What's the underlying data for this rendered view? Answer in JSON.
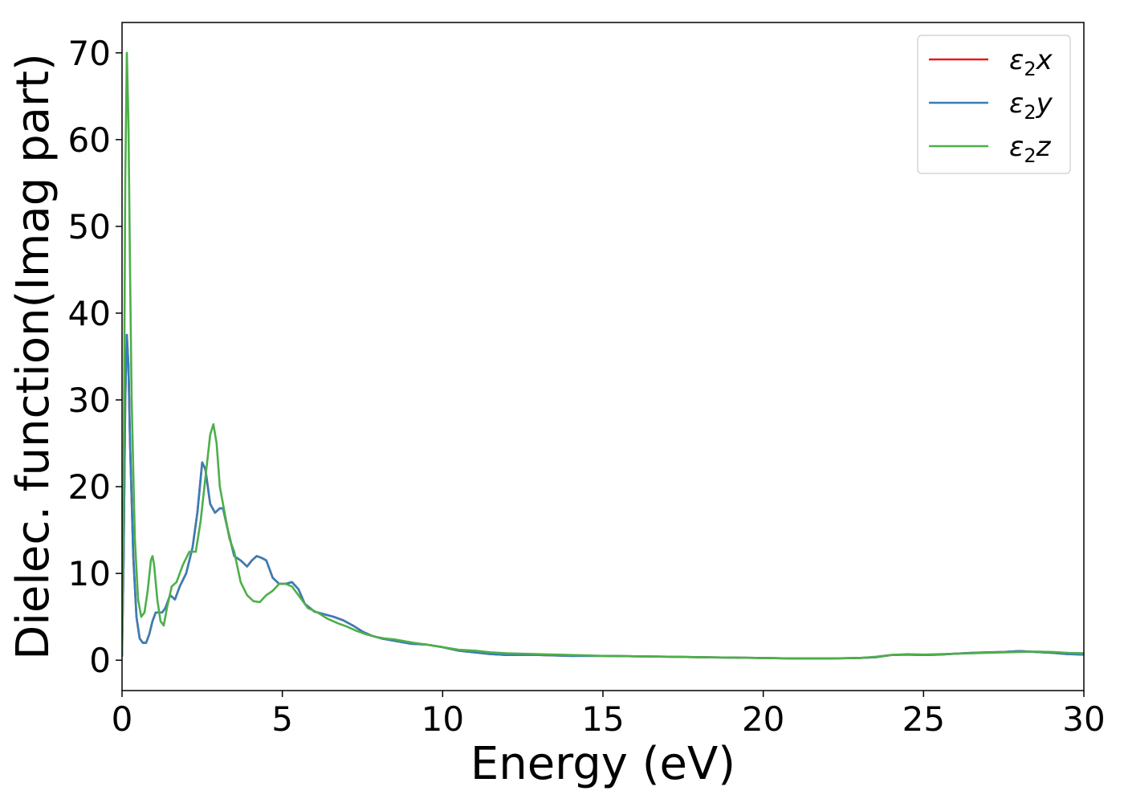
{
  "chart_data": {
    "type": "line",
    "title": "",
    "xlabel": "Energy (eV)",
    "ylabel": "Dielec. function(Imag part)",
    "xlim": [
      0,
      30
    ],
    "ylim": [
      -3.5,
      73.5
    ],
    "xticks": [
      0,
      5,
      10,
      15,
      20,
      25,
      30
    ],
    "xtick_labels": [
      "0",
      "5",
      "10",
      "15",
      "20",
      "25",
      "30"
    ],
    "yticks": [
      0,
      10,
      20,
      30,
      40,
      50,
      60,
      70
    ],
    "ytick_labels": [
      "0",
      "10",
      "20",
      "30",
      "40",
      "50",
      "60",
      "70"
    ],
    "grid": false,
    "legend_position": "top-right",
    "series": [
      {
        "name": "ε2x",
        "legend_base": "ε",
        "legend_sub": "2",
        "legend_suffix": "x",
        "color": "#e41a1c",
        "x": [
          0,
          0.05,
          0.1,
          0.15,
          0.2,
          0.25,
          0.35,
          0.45,
          0.55,
          0.65,
          0.75,
          0.85,
          0.95,
          1.05,
          1.15,
          1.25,
          1.35,
          1.5,
          1.65,
          1.8,
          2.0,
          2.2,
          2.35,
          2.5,
          2.6,
          2.75,
          2.9,
          3.05,
          3.15,
          3.3,
          3.5,
          3.7,
          3.9,
          4.05,
          4.2,
          4.35,
          4.5,
          4.7,
          4.9,
          5.1,
          5.3,
          5.5,
          5.7,
          6.0,
          6.3,
          6.6,
          6.9,
          7.2,
          7.5,
          7.8,
          8.1,
          8.4,
          8.7,
          9.0,
          9.5,
          10,
          10.5,
          11,
          11.5,
          12,
          13,
          14,
          15,
          16,
          17,
          18,
          19,
          20,
          21,
          22,
          23,
          23.5,
          24,
          24.5,
          25,
          25.5,
          26,
          26.5,
          27,
          27.5,
          28,
          28.5,
          29,
          29.5,
          30
        ],
        "values": [
          0.5,
          12,
          30,
          37.5,
          34,
          25,
          12,
          5,
          2.5,
          2,
          2,
          3,
          4.5,
          5.5,
          5.5,
          5.5,
          6,
          7.5,
          7,
          8.5,
          10,
          13,
          17,
          22.8,
          22,
          18,
          17,
          17.5,
          17.5,
          15,
          12,
          11.5,
          10.8,
          11.5,
          12,
          11.8,
          11.5,
          9.5,
          8.8,
          8.8,
          9,
          8.2,
          6.5,
          5.6,
          5.3,
          5,
          4.6,
          4,
          3.3,
          2.8,
          2.5,
          2.3,
          2.1,
          1.9,
          1.8,
          1.5,
          1.1,
          0.9,
          0.7,
          0.6,
          0.6,
          0.5,
          0.5,
          0.45,
          0.4,
          0.35,
          0.3,
          0.25,
          0.2,
          0.2,
          0.25,
          0.35,
          0.6,
          0.65,
          0.6,
          0.65,
          0.75,
          0.85,
          0.9,
          0.95,
          1.05,
          0.95,
          0.85,
          0.7,
          0.65
        ]
      },
      {
        "name": "ε2y",
        "legend_base": "ε",
        "legend_sub": "2",
        "legend_suffix": "y",
        "color": "#377eb8",
        "x": [
          0,
          0.05,
          0.1,
          0.15,
          0.2,
          0.25,
          0.35,
          0.45,
          0.55,
          0.65,
          0.75,
          0.85,
          0.95,
          1.05,
          1.15,
          1.25,
          1.35,
          1.5,
          1.65,
          1.8,
          2.0,
          2.2,
          2.35,
          2.5,
          2.6,
          2.75,
          2.9,
          3.05,
          3.15,
          3.3,
          3.5,
          3.7,
          3.9,
          4.05,
          4.2,
          4.35,
          4.5,
          4.7,
          4.9,
          5.1,
          5.3,
          5.5,
          5.7,
          6.0,
          6.3,
          6.6,
          6.9,
          7.2,
          7.5,
          7.8,
          8.1,
          8.4,
          8.7,
          9.0,
          9.5,
          10,
          10.5,
          11,
          11.5,
          12,
          13,
          14,
          15,
          16,
          17,
          18,
          19,
          20,
          21,
          22,
          23,
          23.5,
          24,
          24.5,
          25,
          25.5,
          26,
          26.5,
          27,
          27.5,
          28,
          28.5,
          29,
          29.5,
          30
        ],
        "values": [
          0.5,
          12,
          30,
          37.5,
          34,
          25,
          12,
          5,
          2.5,
          2,
          2,
          3,
          4.5,
          5.5,
          5.5,
          5.5,
          6,
          7.5,
          7,
          8.5,
          10,
          13,
          17,
          22.8,
          22,
          18,
          17,
          17.5,
          17.5,
          15,
          12,
          11.5,
          10.8,
          11.5,
          12,
          11.8,
          11.5,
          9.5,
          8.8,
          8.8,
          9,
          8.2,
          6.5,
          5.6,
          5.3,
          5,
          4.6,
          4,
          3.3,
          2.8,
          2.5,
          2.3,
          2.1,
          1.9,
          1.8,
          1.5,
          1.1,
          0.9,
          0.7,
          0.6,
          0.6,
          0.5,
          0.5,
          0.45,
          0.4,
          0.35,
          0.3,
          0.25,
          0.2,
          0.2,
          0.25,
          0.35,
          0.6,
          0.65,
          0.6,
          0.65,
          0.75,
          0.85,
          0.9,
          0.95,
          1.05,
          0.95,
          0.85,
          0.7,
          0.65
        ]
      },
      {
        "name": "ε2z",
        "legend_base": "ε",
        "legend_sub": "2",
        "legend_suffix": "z",
        "color": "#4daf4a",
        "x": [
          0,
          0.05,
          0.1,
          0.15,
          0.2,
          0.25,
          0.3,
          0.4,
          0.5,
          0.6,
          0.7,
          0.8,
          0.9,
          0.95,
          1.0,
          1.1,
          1.2,
          1.3,
          1.4,
          1.55,
          1.7,
          1.9,
          2.1,
          2.3,
          2.45,
          2.6,
          2.75,
          2.85,
          2.95,
          3.05,
          3.2,
          3.35,
          3.5,
          3.7,
          3.9,
          4.1,
          4.3,
          4.5,
          4.7,
          4.9,
          5.1,
          5.3,
          5.5,
          5.8,
          6.1,
          6.4,
          6.7,
          7.0,
          7.3,
          7.6,
          7.9,
          8.2,
          8.5,
          8.8,
          9.1,
          9.5,
          10,
          10.5,
          11,
          11.5,
          12,
          13,
          14,
          15,
          16,
          17,
          18,
          19,
          20,
          21,
          22,
          23,
          23.5,
          24,
          24.5,
          25,
          25.5,
          26,
          26.5,
          27,
          27.5,
          28,
          28.5,
          29,
          29.5,
          30
        ],
        "values": [
          1,
          20,
          55,
          70,
          62,
          45,
          30,
          14,
          7,
          5,
          5.5,
          8,
          11.5,
          12,
          11,
          7,
          4.5,
          4,
          6,
          8.5,
          9,
          11,
          12.5,
          12.5,
          16,
          21,
          26,
          27.2,
          25,
          20,
          17,
          14,
          12.5,
          9,
          7.5,
          6.8,
          6.7,
          7.5,
          8,
          8.8,
          8.8,
          8.5,
          7.5,
          6,
          5.5,
          4.8,
          4.3,
          3.9,
          3.4,
          3,
          2.7,
          2.5,
          2.4,
          2.2,
          2,
          1.8,
          1.5,
          1.2,
          1.1,
          0.9,
          0.8,
          0.7,
          0.6,
          0.5,
          0.45,
          0.4,
          0.35,
          0.3,
          0.25,
          0.2,
          0.2,
          0.25,
          0.4,
          0.6,
          0.7,
          0.65,
          0.7,
          0.75,
          0.8,
          0.85,
          0.9,
          0.95,
          1.0,
          0.95,
          0.85,
          0.8
        ]
      }
    ]
  }
}
